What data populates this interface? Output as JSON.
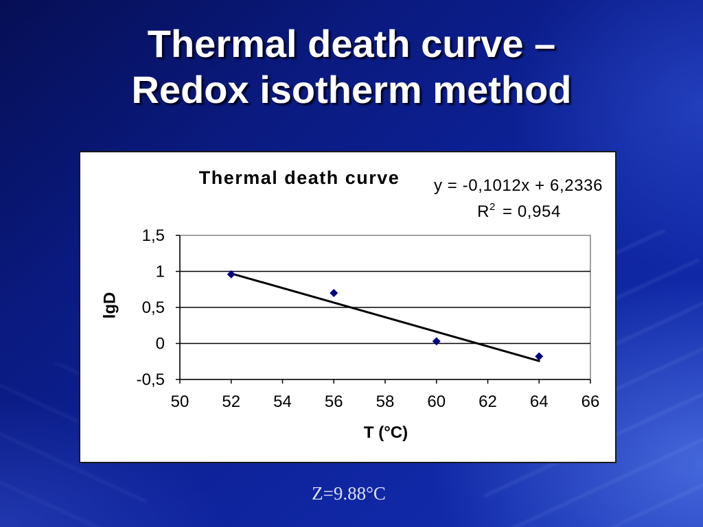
{
  "slide": {
    "title_line_1": "Thermal death curve –",
    "title_line_2": "Redox isotherm method",
    "footer_note": "Z=9.88°C"
  },
  "colors": {
    "background": "#0e1d8a",
    "title_text": "#ffffff",
    "chart_background": "#ffffff",
    "footer_text": "#dde1f5"
  },
  "chart_data": {
    "type": "scatter",
    "title": "Thermal death curve",
    "xlabel": "T (°C)",
    "ylabel": "lgD",
    "x": [
      52,
      56,
      60,
      64
    ],
    "y": [
      0.96,
      0.7,
      0.03,
      -0.18
    ],
    "xlim": [
      50,
      66
    ],
    "ylim": [
      -0.5,
      1.5
    ],
    "x_ticks": [
      {
        "value": 50,
        "label": "50"
      },
      {
        "value": 52,
        "label": "52"
      },
      {
        "value": 54,
        "label": "54"
      },
      {
        "value": 56,
        "label": "56"
      },
      {
        "value": 58,
        "label": "58"
      },
      {
        "value": 60,
        "label": "60"
      },
      {
        "value": 62,
        "label": "62"
      },
      {
        "value": 64,
        "label": "64"
      },
      {
        "value": 66,
        "label": "66"
      }
    ],
    "y_ticks": [
      {
        "value": 1.5,
        "label": "1,5"
      },
      {
        "value": 1,
        "label": "1"
      },
      {
        "value": 0.5,
        "label": "0,5"
      },
      {
        "value": 0,
        "label": "0"
      },
      {
        "value": -0.5,
        "label": "-0,5"
      }
    ],
    "grid": true,
    "marker_color": "#000080",
    "gridline_color": "#000000",
    "plot_border_color": "#808080",
    "trendline": {
      "equation": "y = -0,1012x + 6,2336",
      "r2_symbol": "R",
      "r2_exponent": "2",
      "r2_value": "= 0,954",
      "slope": -0.1012,
      "intercept": 6.2336,
      "x_range": [
        52,
        64
      ],
      "color": "#000000"
    }
  }
}
